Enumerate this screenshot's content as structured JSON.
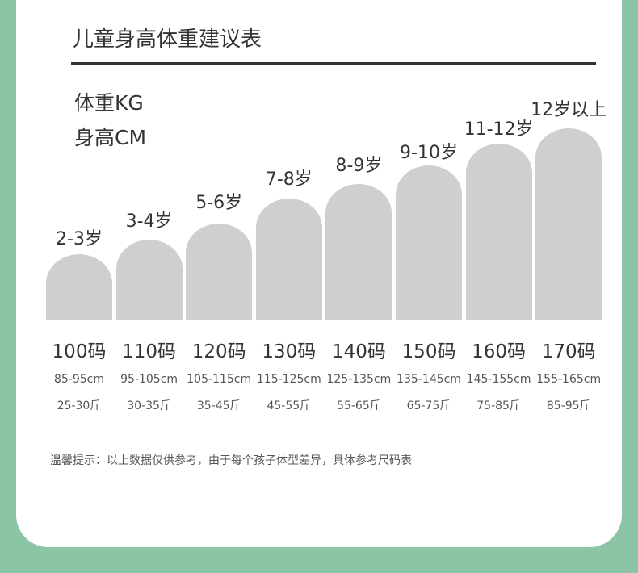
{
  "header": {
    "title": "儿童身高体重建议表"
  },
  "labels": [
    "体重KG",
    "身高CM"
  ],
  "columns": [
    {
      "age": "2-3岁",
      "size": "100码",
      "height": "85-95cm",
      "weight": "25-30斤"
    },
    {
      "age": "3-4岁",
      "size": "110码",
      "height": "95-105cm",
      "weight": "30-35斤"
    },
    {
      "age": "5-6岁",
      "size": "120码",
      "height": "105-115cm",
      "weight": "35-45斤"
    },
    {
      "age": "7-8岁",
      "size": "130码",
      "height": "115-125cm",
      "weight": "45-55斤"
    },
    {
      "age": "8-9岁",
      "size": "140码",
      "height": "125-135cm",
      "weight": "55-65斤"
    },
    {
      "age": "9-10岁",
      "size": "150码",
      "height": "135-145cm",
      "weight": "65-75斤"
    },
    {
      "age": "11-12岁",
      "size": "160码",
      "height": "145-155cm",
      "weight": "75-85斤"
    },
    {
      "age": "12岁以上",
      "size": "170码",
      "height": "155-165cm",
      "weight": "85-95斤"
    }
  ],
  "note": "温馨提示：以上数据仅供参考，由于每个孩子体型差异，具体参考尺码表"
}
